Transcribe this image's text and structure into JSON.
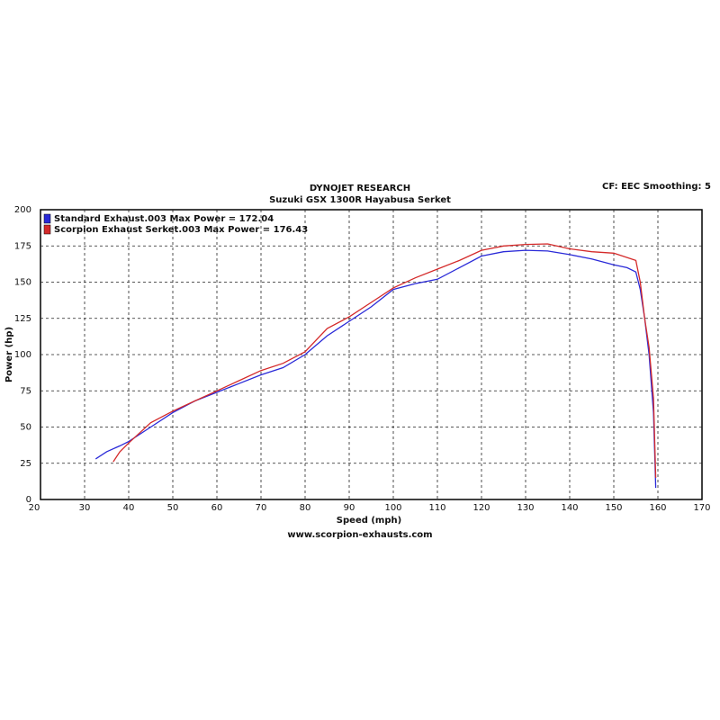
{
  "chart_data": {
    "type": "line",
    "title": "DYNOJET RESEARCH",
    "subtitle": "Suzuki GSX 1300R Hayabusa Serket",
    "annotation": "CF: EEC  Smoothing: 5",
    "x_label": "Speed (mph)",
    "y_label": "Power (hp)",
    "footer": "www.scorpion-exhausts.com",
    "xlim": [
      20,
      170
    ],
    "ylim": [
      0,
      200
    ],
    "xticks": [
      20,
      30,
      40,
      50,
      60,
      70,
      80,
      90,
      100,
      110,
      120,
      130,
      140,
      150,
      160,
      170
    ],
    "yticks": [
      0,
      25,
      50,
      75,
      100,
      125,
      150,
      175,
      200
    ],
    "grid": true,
    "legend": "top-left",
    "series": [
      {
        "name": "Standard Exhaust.003 Max Power = 172.04",
        "color": "#2a2ad8",
        "x": [
          32.5,
          35,
          38,
          40,
          45,
          50,
          55,
          60,
          65,
          70,
          75,
          80,
          85,
          90,
          95,
          100,
          105,
          110,
          115,
          120,
          125,
          130,
          135,
          140,
          145,
          150,
          153,
          155,
          156,
          157,
          158,
          159,
          159.5
        ],
        "values": [
          28,
          33,
          37,
          40,
          50,
          60,
          68,
          74,
          80,
          86,
          91,
          100,
          113,
          123,
          133,
          145,
          149,
          152,
          160,
          168,
          171,
          172,
          171.5,
          169,
          166,
          162,
          160,
          157,
          145,
          125,
          100,
          60,
          8
        ]
      },
      {
        "name": "Scorpion Exhaust Serket.003 Max Power = 176.43",
        "color": "#d42a2a",
        "x": [
          36.5,
          38,
          40,
          45,
          50,
          55,
          60,
          65,
          70,
          75,
          80,
          85,
          90,
          95,
          100,
          105,
          110,
          115,
          120,
          125,
          130,
          135,
          140,
          145,
          150,
          153,
          155,
          156,
          157,
          158,
          159,
          159.5
        ],
        "values": [
          26,
          33,
          39,
          53,
          61,
          68,
          75,
          82,
          89,
          94,
          102,
          118,
          126,
          136,
          146,
          153,
          159,
          165,
          172,
          175,
          176,
          176.4,
          173,
          171,
          170,
          167,
          165,
          150,
          125,
          105,
          70,
          15
        ]
      }
    ]
  }
}
